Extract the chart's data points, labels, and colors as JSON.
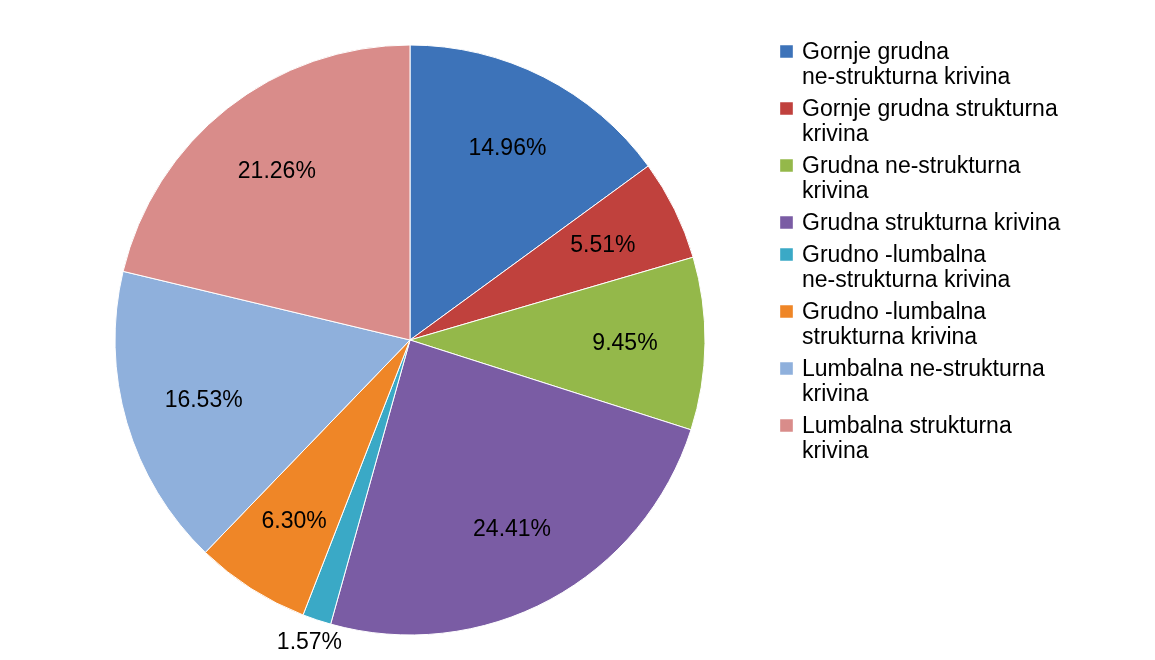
{
  "chart_data": {
    "type": "pie",
    "categories": [
      "Gornje grudna ne-strukturna krivina",
      "Gornje grudna strukturna krivina",
      "Grudna ne-strukturna krivina",
      "Grudna strukturna krivina",
      "Grudno -lumbalna ne-strukturna krivina",
      "Grudno -lumbalna strukturna krivina",
      "Lumbalna ne-strukturna krivina",
      "Lumbalna strukturna krivina"
    ],
    "values": [
      14.96,
      5.51,
      9.45,
      24.41,
      1.57,
      6.3,
      16.53,
      21.26
    ],
    "colors": [
      "#3d73b9",
      "#c0413d",
      "#94b84a",
      "#7a5ca4",
      "#3aa9c6",
      "#ef8627",
      "#8fb0dc",
      "#d98c8a"
    ],
    "value_labels": [
      "14.96%",
      "5.51%",
      "9.45%",
      "24.41%",
      "1.57%",
      "6.30%",
      "16.53%",
      "21.26%"
    ],
    "legend": "right"
  }
}
